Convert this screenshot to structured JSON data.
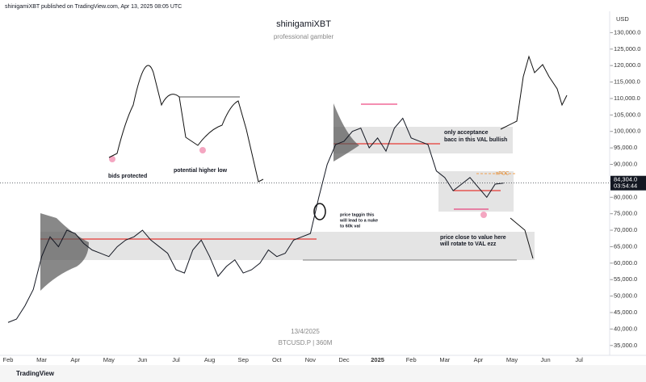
{
  "header": "shinigamiXBT published on TradingView.com, Apr 13, 2025 08:05 UTC",
  "footer": "TradingView",
  "chart_data": {
    "type": "line",
    "title": "shinigamiXBT",
    "subtitle": "professional gambler",
    "y_axis_label": "USD",
    "symbol": "BTCUSD.P | 360M",
    "date_label": "13/4/2025",
    "categories": [
      "Feb",
      null,
      null,
      null,
      "Mar",
      null,
      null,
      null,
      "Apr",
      null,
      null,
      null,
      "May",
      null,
      null,
      null,
      "Jun",
      null,
      null,
      null,
      "Jul",
      null,
      null,
      null,
      "Aug",
      null,
      null,
      null,
      "Sep",
      null,
      null,
      null,
      "Oct",
      null,
      null,
      null,
      "Nov",
      null,
      null,
      null,
      "Dec",
      null,
      null,
      null,
      "2025",
      null,
      null,
      null,
      "Feb",
      null,
      null,
      null,
      "Mar",
      null,
      null,
      null,
      "Apr",
      null,
      null,
      null,
      "May",
      null,
      null,
      null,
      "Jun",
      null,
      null,
      null,
      "Jul"
    ],
    "series": [
      {
        "name": "BTCUSD.P",
        "color": "#131722",
        "values": [
          42000,
          43000,
          47000,
          52000,
          62000,
          68000,
          65000,
          70000,
          69000,
          66000,
          64000,
          63000,
          62000,
          65000,
          67000,
          68000,
          70000,
          67000,
          65000,
          63000,
          58000,
          57000,
          64000,
          67000,
          62000,
          56000,
          59000,
          61000,
          57000,
          58000,
          60000,
          64000,
          62000,
          63000,
          67000,
          68000,
          69000,
          80000,
          90000,
          96000,
          97000,
          100000,
          101000,
          95000,
          98000,
          94000,
          101000,
          104000,
          98000,
          97000,
          96000,
          88000,
          86000,
          82000,
          84000,
          86000,
          83000,
          80000,
          84000,
          84304,
          null,
          null,
          null,
          null,
          null,
          null,
          null,
          null,
          null
        ]
      }
    ],
    "last_price": {
      "value": 84304,
      "label": "84,304.0",
      "countdown": "03:54:44"
    },
    "ylim": [
      32000,
      135000
    ],
    "yticks": [
      {
        "value": 35000,
        "label": "35,000.0"
      },
      {
        "value": 40000,
        "label": "40,000.0"
      },
      {
        "value": 45000,
        "label": "45,000.0"
      },
      {
        "value": 50000,
        "label": "50,000.0"
      },
      {
        "value": 55000,
        "label": "55,000.0"
      },
      {
        "value": 60000,
        "label": "60,000.0"
      },
      {
        "value": 65000,
        "label": "65,000.0"
      },
      {
        "value": 70000,
        "label": "70,000.0"
      },
      {
        "value": 75000,
        "label": "75,000.0"
      },
      {
        "value": 80000,
        "label": "80,000.0"
      },
      {
        "value": 85000,
        "label": "85,000.0"
      },
      {
        "value": 90000,
        "label": "90,000.0"
      },
      {
        "value": 95000,
        "label": "95,000.0"
      },
      {
        "value": 100000,
        "label": "100,000.0"
      },
      {
        "value": 105000,
        "label": "105,000.0"
      },
      {
        "value": 110000,
        "label": "110,000.0"
      },
      {
        "value": 115000,
        "label": "115,000.0"
      },
      {
        "value": 120000,
        "label": "120,000.0"
      },
      {
        "value": 125000,
        "label": "125,000.0"
      },
      {
        "value": 130000,
        "label": "130,000.0"
      }
    ],
    "annotations": {
      "bids": "bids protected",
      "higher_low": "potential higher low",
      "acceptance": [
        "only acceptance",
        "bacc in this VAL bullish"
      ],
      "nuke": [
        "price taggin this",
        "will lead to a nuke",
        "to 60k val"
      ],
      "rotate": [
        "price close to value here",
        "will rotate to VAL ezz"
      ],
      "npoc": "nPOC"
    }
  }
}
